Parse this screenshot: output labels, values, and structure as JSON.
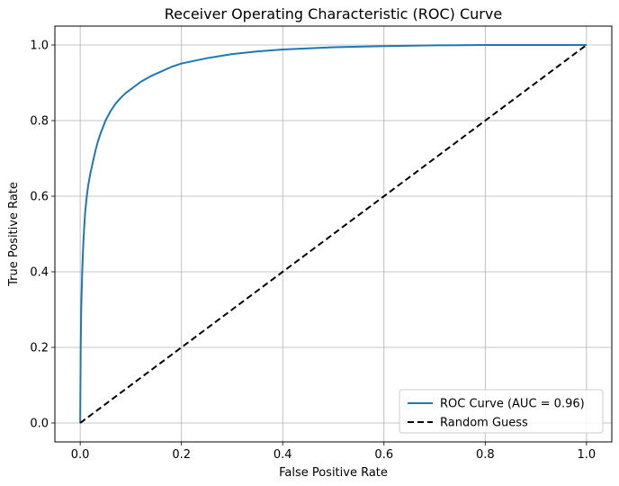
{
  "chart_data": {
    "type": "line",
    "title": "Receiver Operating Characteristic (ROC) Curve",
    "xlabel": "False Positive Rate",
    "ylabel": "True Positive Rate",
    "xlim": [
      -0.05,
      1.05
    ],
    "ylim": [
      -0.05,
      1.05
    ],
    "xticks": [
      0.0,
      0.2,
      0.4,
      0.6,
      0.8,
      1.0
    ],
    "yticks": [
      0.0,
      0.2,
      0.4,
      0.6,
      0.8,
      1.0
    ],
    "xtick_labels": [
      "0.0",
      "0.2",
      "0.4",
      "0.6",
      "0.8",
      "1.0"
    ],
    "ytick_labels": [
      "0.0",
      "0.2",
      "0.4",
      "0.6",
      "0.8",
      "1.0"
    ],
    "grid": true,
    "legend_position": "lower-right",
    "series": [
      {
        "name": "ROC Curve (AUC = 0.96)",
        "color": "#1f77b4",
        "style": "solid",
        "x": [
          0.0,
          0.001,
          0.002,
          0.004,
          0.006,
          0.008,
          0.01,
          0.013,
          0.016,
          0.02,
          0.025,
          0.03,
          0.035,
          0.04,
          0.05,
          0.06,
          0.07,
          0.08,
          0.09,
          0.1,
          0.12,
          0.14,
          0.16,
          0.18,
          0.2,
          0.25,
          0.3,
          0.35,
          0.4,
          0.5,
          0.6,
          0.7,
          0.8,
          0.9,
          1.0
        ],
        "y": [
          0.0,
          0.2,
          0.3,
          0.4,
          0.47,
          0.52,
          0.56,
          0.6,
          0.63,
          0.66,
          0.69,
          0.72,
          0.745,
          0.765,
          0.8,
          0.825,
          0.845,
          0.86,
          0.873,
          0.883,
          0.903,
          0.918,
          0.93,
          0.942,
          0.951,
          0.965,
          0.976,
          0.983,
          0.988,
          0.994,
          0.997,
          0.999,
          1.0,
          1.0,
          1.0
        ]
      },
      {
        "name": "Random Guess",
        "color": "#000000",
        "style": "dashed",
        "x": [
          0.0,
          1.0
        ],
        "y": [
          0.0,
          1.0
        ]
      }
    ]
  }
}
